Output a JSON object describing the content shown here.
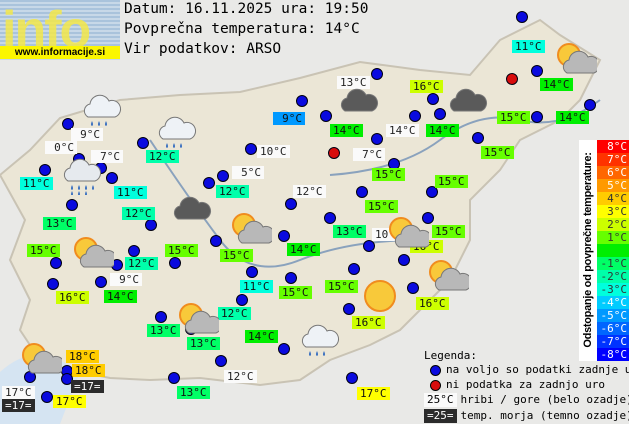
{
  "logo": {
    "word": "info",
    "url": "www.informacije.si"
  },
  "header": {
    "date_line": "Datum: 16.11.2025 ura: 19:50",
    "avg_line": "Povprečna temperatura: 14°C",
    "source_line": "Vir podatkov: ARSO"
  },
  "average_temp": 14,
  "stations": [
    {
      "temp": "11°C",
      "type": "dev"
    },
    {
      "temp": "14°C",
      "type": "dev"
    },
    {
      "temp": "14°C",
      "type": "dev"
    },
    {
      "temp": "15°C",
      "type": "dev"
    },
    {
      "temp": "13°C",
      "type": "mountain"
    },
    {
      "temp": "16°C",
      "type": "dev"
    },
    {
      "temp": "14°C",
      "type": "dev"
    },
    {
      "temp": "14°C",
      "type": "mountain"
    },
    {
      "temp": "14°C",
      "type": "dev"
    },
    {
      "temp": "7°C",
      "type": "mountain"
    },
    {
      "temp": "15°C",
      "type": "dev"
    },
    {
      "temp": "15°C",
      "type": "dev"
    },
    {
      "temp": "15°C",
      "type": "dev"
    },
    {
      "temp": "15°C",
      "type": "dev"
    },
    {
      "temp": "13°C",
      "type": "dev"
    },
    {
      "temp": "10°C",
      "type": "mountain"
    },
    {
      "temp": "15°C",
      "type": "dev"
    },
    {
      "temp": "16°C",
      "type": "dev"
    },
    {
      "temp": "12°C",
      "type": "mountain"
    },
    {
      "temp": "9°C",
      "type": "dev"
    },
    {
      "temp": "10°C",
      "type": "mountain"
    },
    {
      "temp": "5°C",
      "type": "mountain"
    },
    {
      "temp": "12°C",
      "type": "dev"
    },
    {
      "temp": "9°C",
      "type": "mountain"
    },
    {
      "temp": "12°C",
      "type": "dev"
    },
    {
      "temp": "0°C",
      "type": "mountain"
    },
    {
      "temp": "7°C",
      "type": "mountain"
    },
    {
      "temp": "11°C",
      "type": "dev"
    },
    {
      "temp": "11°C",
      "type": "dev"
    },
    {
      "temp": "13°C",
      "type": "dev"
    },
    {
      "temp": "12°C",
      "type": "dev"
    },
    {
      "temp": "15°C",
      "type": "dev"
    },
    {
      "temp": "12°C",
      "type": "dev"
    },
    {
      "temp": "15°C",
      "type": "dev"
    },
    {
      "temp": "15°C",
      "type": "dev"
    },
    {
      "temp": "14°C",
      "type": "dev"
    },
    {
      "temp": "9°C",
      "type": "mountain"
    },
    {
      "temp": "14°C",
      "type": "dev"
    },
    {
      "temp": "16°C",
      "type": "dev"
    },
    {
      "temp": "11°C",
      "type": "dev"
    },
    {
      "temp": "15°C",
      "type": "dev"
    },
    {
      "temp": "15°C",
      "type": "dev"
    },
    {
      "temp": "16°C",
      "type": "dev"
    },
    {
      "temp": "16°C",
      "type": "dev"
    },
    {
      "temp": "12°C",
      "type": "dev"
    },
    {
      "temp": "13°C",
      "type": "dev"
    },
    {
      "temp": "13°C",
      "type": "dev"
    },
    {
      "temp": "14°C",
      "type": "dev"
    },
    {
      "temp": "18°C",
      "type": "dev"
    },
    {
      "temp": "18°C",
      "type": "dev"
    },
    {
      "temp": "=17=",
      "type": "sea"
    },
    {
      "temp": "17°C",
      "type": "mountain"
    },
    {
      "temp": "=17=",
      "type": "sea"
    },
    {
      "temp": "17°C",
      "type": "dev"
    },
    {
      "temp": "13°C",
      "type": "dev"
    },
    {
      "temp": "12°C",
      "type": "mountain"
    },
    {
      "temp": "17°C",
      "type": "dev"
    }
  ],
  "missing_stations": 2,
  "weather_icons": [
    "rain-cloud",
    "rain-cloud",
    "heavy-rain-cloud",
    "dark-cloud",
    "sun-cloud",
    "dark-cloud",
    "dark-cloud",
    "sun-cloud",
    "sun-cloud",
    "sun-cloud",
    "sun-cloud",
    "sun",
    "sun-cloud",
    "rain-cloud",
    "sun-cloud"
  ],
  "scale": {
    "title": "Odstopanje od povprečne temperature:",
    "steps": [
      {
        "label": "8°C",
        "color": "#ff0000"
      },
      {
        "label": "7°C",
        "color": "#ff3300"
      },
      {
        "label": "6°C",
        "color": "#ff6600"
      },
      {
        "label": "5°C",
        "color": "#ff9900"
      },
      {
        "label": "4°C",
        "color": "#ffcc00"
      },
      {
        "label": "3°C",
        "color": "#ffff00"
      },
      {
        "label": "2°C",
        "color": "#ccff00"
      },
      {
        "label": "1°C",
        "color": "#66ff00"
      },
      {
        "label": "",
        "color": "#00ee00"
      },
      {
        "label": "-1°C",
        "color": "#00ff66"
      },
      {
        "label": "-2°C",
        "color": "#00ffaa"
      },
      {
        "label": "-3°C",
        "color": "#00ffdd"
      },
      {
        "label": "-4°C",
        "color": "#00ccff"
      },
      {
        "label": "-5°C",
        "color": "#0099ff"
      },
      {
        "label": "-6°C",
        "color": "#0066ff"
      },
      {
        "label": "-7°C",
        "color": "#0033ff"
      },
      {
        "label": "-8°C",
        "color": "#0000ff"
      }
    ]
  },
  "legend": {
    "title": "Legenda:",
    "available": "na voljo so podatki zadnje ure",
    "missing": "ni podatka za zadnjo uro",
    "mountain_sample": "25°C",
    "mountain": "hribi / gore (belo ozadje)",
    "sea_sample": "=25=",
    "sea": "temp. morja (temno ozadje)"
  }
}
